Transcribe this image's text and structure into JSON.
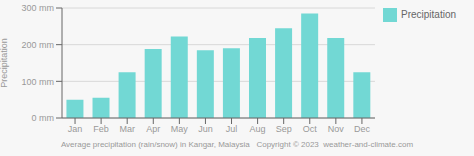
{
  "chart_data": {
    "type": "bar",
    "categories": [
      "Jan",
      "Feb",
      "Mar",
      "Apr",
      "May",
      "Jun",
      "Jul",
      "Aug",
      "Sep",
      "Oct",
      "Nov",
      "Dec"
    ],
    "series": [
      {
        "name": "Precipitation",
        "color": "#72d8d4",
        "values": [
          50,
          55,
          125,
          188,
          222,
          185,
          190,
          218,
          245,
          285,
          218,
          125
        ]
      }
    ],
    "ylabel": "Precipitation",
    "xlabel": "Average precipitation (rain/snow) in Kangar, Malaysia   Copyright © 2023  weather-and-climate.com",
    "ylim": [
      0,
      300
    ],
    "yticks": [
      {
        "value": 0,
        "label": "0 mm"
      },
      {
        "value": 100,
        "label": "100 mm"
      },
      {
        "value": 200,
        "label": "200 mm"
      },
      {
        "value": 300,
        "label": "300 mm"
      }
    ],
    "grid": true,
    "legend": "upper right"
  }
}
